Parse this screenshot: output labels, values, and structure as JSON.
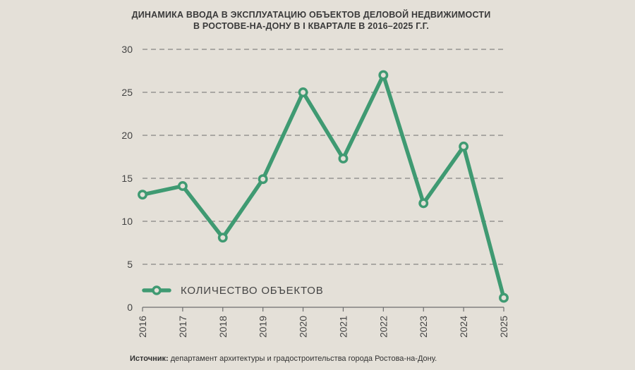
{
  "chart_data": {
    "type": "line",
    "title": "ДИНАМИКА ВВОДА В ЭКСПЛУАТАЦИЮ ОБЪЕКТОВ ДЕЛОВОЙ НЕДВИЖИМОСТИ",
    "subtitle": "В РОСТОВЕ-НА-ДОНУ В I КВАРТАЛЕ В 2016–2025 Г.Г.",
    "xlabel": "",
    "ylabel": "",
    "categories": [
      "2016",
      "2017",
      "2018",
      "2019",
      "2020",
      "2021",
      "2022",
      "2023",
      "2024",
      "2025"
    ],
    "series": [
      {
        "name": "КОЛИЧЕСТВО ОБЪЕКТОВ",
        "values": [
          13.1,
          14.1,
          8.1,
          14.9,
          25.0,
          17.3,
          27.0,
          12.1,
          18.7,
          1.1
        ],
        "color": "#3f9a72"
      }
    ],
    "ylim": [
      0,
      30
    ],
    "yticks": [
      0,
      5,
      10,
      15,
      20,
      25,
      30
    ],
    "grid": true,
    "legend_position": "bottom-left"
  },
  "source": {
    "label": "Источник:",
    "text": " департамент архитектуры и градостроительства города Ростова-на-Дону."
  }
}
